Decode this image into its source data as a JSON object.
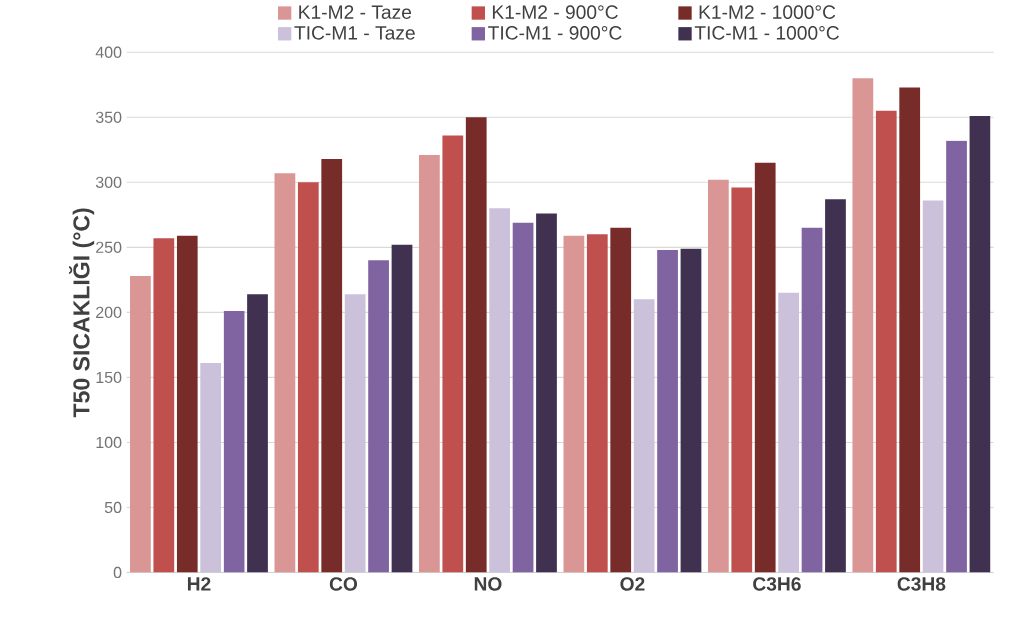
{
  "chart_data": {
    "type": "bar",
    "ylabel": "T50 SICAKLIĞI (°C)",
    "categories": [
      "H2",
      "CO",
      "NO",
      "O2",
      "C3H6",
      "C3H8"
    ],
    "series": [
      {
        "name": "K1-M2 - Taze",
        "color": "#d99694",
        "values": [
          228,
          307,
          321,
          259,
          302,
          380
        ]
      },
      {
        "name": "K1-M2 - 900°C",
        "color": "#c0504d",
        "values": [
          257,
          300,
          336,
          260,
          296,
          355
        ]
      },
      {
        "name": "K1-M2 - 1000°C",
        "color": "#772c2a",
        "values": [
          259,
          318,
          350,
          265,
          315,
          373
        ]
      },
      {
        "name": "TIC-M1 - Taze",
        "color": "#ccc1da",
        "values": [
          161,
          214,
          280,
          210,
          215,
          286
        ]
      },
      {
        "name": "TIC-M1 - 900°C",
        "color": "#8064a2",
        "values": [
          201,
          240,
          269,
          248,
          265,
          332
        ]
      },
      {
        "name": "TIC-M1 - 1000°C",
        "color": "#403151",
        "values": [
          214,
          252,
          276,
          249,
          287,
          351
        ]
      }
    ],
    "ylim": [
      0,
      400
    ],
    "yticks": [
      0,
      50,
      100,
      150,
      200,
      250,
      300,
      350,
      400
    ],
    "grid": "y",
    "legend": "top"
  }
}
